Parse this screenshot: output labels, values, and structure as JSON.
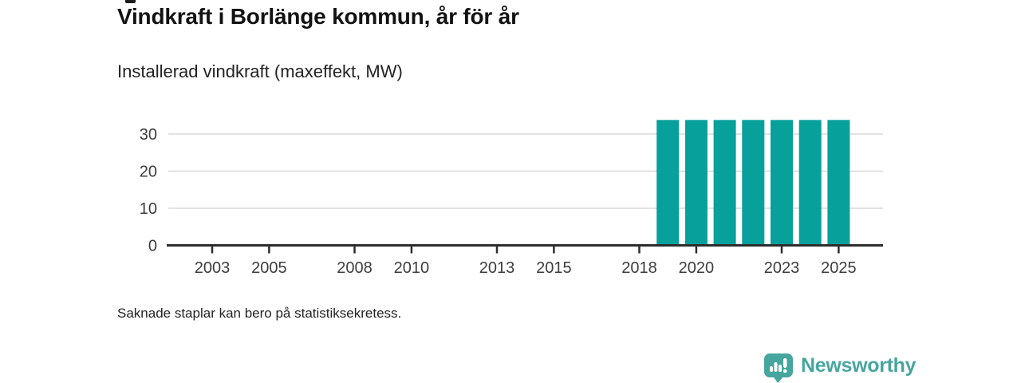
{
  "chart_data": {
    "type": "bar",
    "title": "Vindkraft i Borlänge kommun, år för år",
    "subtitle": "Installerad vindkraft (maxeffekt, MW)",
    "footnote": "Saknade staplar kan bero på statistiksekretess.",
    "ylabel": "",
    "xlabel": "",
    "unit": "MW",
    "x": [
      2019,
      2020,
      2021,
      2022,
      2023,
      2024,
      2025
    ],
    "values": [
      33.8,
      33.8,
      33.8,
      33.8,
      33.8,
      33.8,
      33.8
    ],
    "x_domain_years": [
      2002,
      2025
    ],
    "x_tick_labels": [
      "2003",
      "2005",
      "2008",
      "2010",
      "2013",
      "2015",
      "2018",
      "2020",
      "2023",
      "2025"
    ],
    "y_ticks": [
      0,
      10,
      20,
      30
    ],
    "ylim": [
      0,
      38
    ],
    "grid": "horizontal-only",
    "legend": "none",
    "bar_color": "#08a09a"
  },
  "branding": {
    "logo_text": "Newsworthy",
    "logo_color": "#46a69e",
    "logo_icon": "bar-chart-speech-bubble-icon"
  },
  "colors": {
    "background": "#ffffff",
    "bar": "#08a09a",
    "axis_line": "#2e2e2e",
    "grid_line": "#d8d8d8",
    "title_text": "#121212",
    "body_text": "#232323",
    "tick_label_text": "#3d3d3d"
  }
}
